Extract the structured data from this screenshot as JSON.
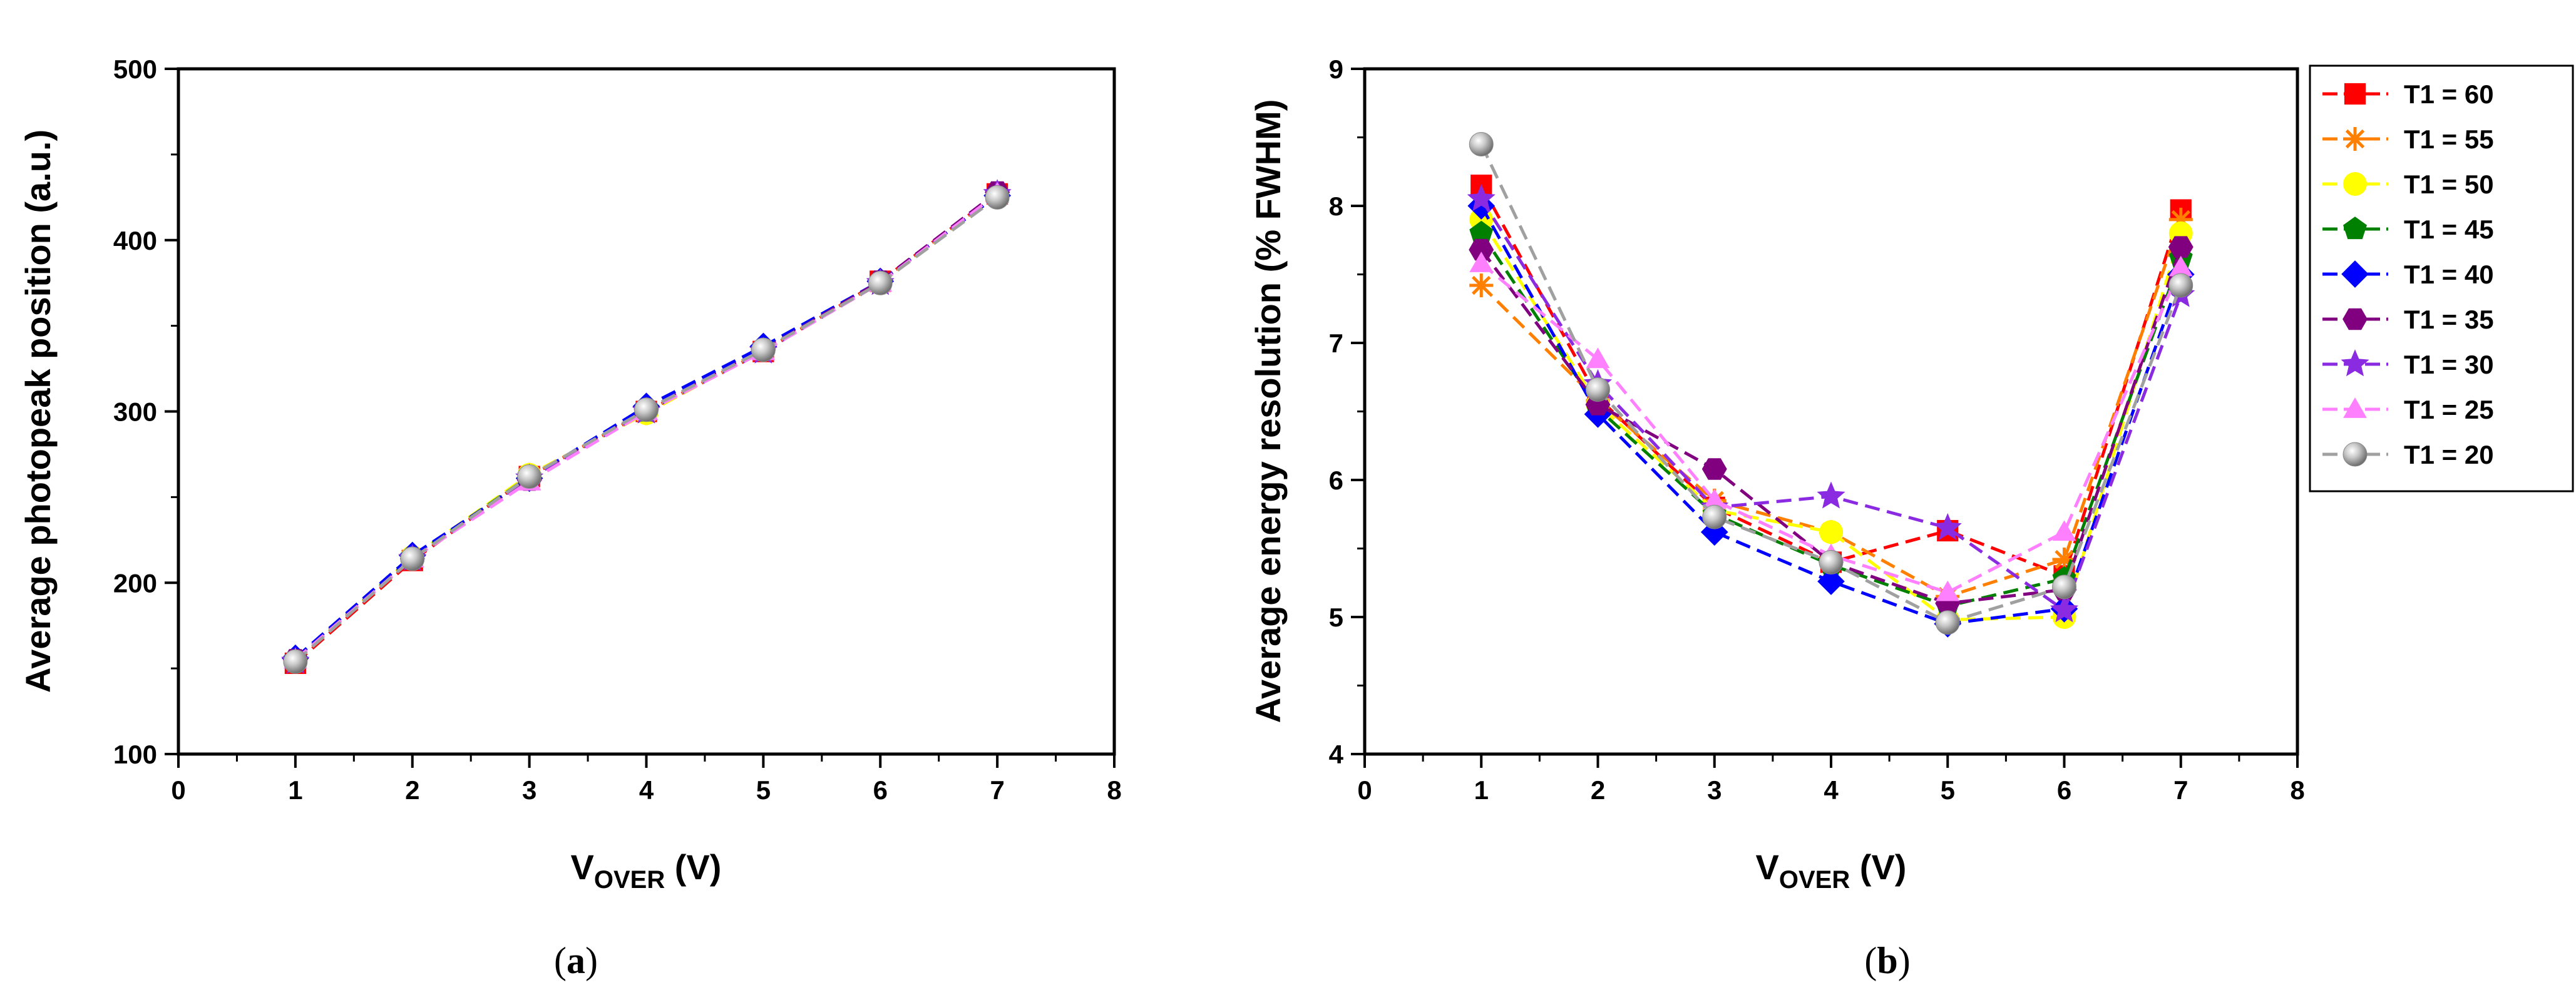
{
  "chart_data": [
    {
      "type": "line",
      "panel": "a",
      "xlabel_main": "V",
      "xlabel_sub": "OVER",
      "xlabel_unit": " (V)",
      "ylabel": "Average photopeak position (a.u.)",
      "xlim": [
        0,
        8
      ],
      "ylim": [
        100,
        500
      ],
      "xticks": [
        0,
        1,
        2,
        3,
        4,
        5,
        6,
        7,
        8
      ],
      "yticks": [
        100,
        200,
        300,
        400,
        500
      ],
      "x": [
        1,
        2,
        3,
        4,
        5,
        6,
        7
      ],
      "series": [
        {
          "name": "T1 = 60",
          "values": [
            153,
            213,
            262,
            300,
            335,
            376,
            427
          ]
        },
        {
          "name": "T1 = 55",
          "values": [
            154,
            214,
            263,
            299,
            336,
            375,
            426
          ]
        },
        {
          "name": "T1 = 50",
          "values": [
            154,
            215,
            263,
            299,
            336,
            375,
            426
          ]
        },
        {
          "name": "T1 = 45",
          "values": [
            155,
            215,
            262,
            300,
            336,
            375,
            427
          ]
        },
        {
          "name": "T1 = 40",
          "values": [
            156,
            216,
            261,
            303,
            338,
            376,
            426
          ]
        },
        {
          "name": "T1 = 35",
          "values": [
            155,
            214,
            260,
            301,
            336,
            376,
            428
          ]
        },
        {
          "name": "T1 = 30",
          "values": [
            154,
            214,
            261,
            300,
            335,
            375,
            427
          ]
        },
        {
          "name": "T1 = 25",
          "values": [
            155,
            214,
            259,
            300,
            335,
            375,
            427
          ]
        },
        {
          "name": "T1 = 20",
          "values": [
            154,
            214,
            262,
            301,
            336,
            375,
            425
          ]
        }
      ],
      "caption_open": "(",
      "caption_letter": "a",
      "caption_close": ")"
    },
    {
      "type": "line",
      "panel": "b",
      "xlabel_main": "V",
      "xlabel_sub": "OVER",
      "xlabel_unit": " (V)",
      "ylabel": "Average energy resolution (% FWHM)",
      "xlim": [
        0,
        8
      ],
      "ylim": [
        4,
        9
      ],
      "xticks": [
        0,
        1,
        2,
        3,
        4,
        5,
        6,
        7,
        8
      ],
      "yticks": [
        4,
        5,
        6,
        7,
        8,
        9
      ],
      "x": [
        1,
        2,
        3,
        4,
        5,
        6,
        7
      ],
      "series": [
        {
          "name": "T1 = 60",
          "values": [
            8.15,
            6.6,
            5.8,
            5.4,
            5.63,
            5.3,
            7.97
          ]
        },
        {
          "name": "T1 = 55",
          "values": [
            7.42,
            6.58,
            5.85,
            5.62,
            5.15,
            5.42,
            7.9
          ]
        },
        {
          "name": "T1 = 50",
          "values": [
            7.9,
            6.55,
            5.78,
            5.62,
            4.98,
            5.0,
            7.8
          ]
        },
        {
          "name": "T1 = 45",
          "values": [
            7.8,
            6.52,
            5.75,
            5.38,
            5.08,
            5.28,
            7.62
          ]
        },
        {
          "name": "T1 = 40",
          "values": [
            8.0,
            6.48,
            5.62,
            5.26,
            4.95,
            5.06,
            7.5
          ]
        },
        {
          "name": "T1 = 35",
          "values": [
            7.68,
            6.55,
            6.08,
            5.4,
            5.1,
            5.2,
            7.7
          ]
        },
        {
          "name": "T1 = 30",
          "values": [
            8.05,
            6.7,
            5.8,
            5.88,
            5.65,
            5.05,
            7.35
          ]
        },
        {
          "name": "T1 = 25",
          "values": [
            7.58,
            6.88,
            5.85,
            5.45,
            5.18,
            5.62,
            7.55
          ]
        },
        {
          "name": "T1 = 20",
          "values": [
            8.45,
            6.66,
            5.73,
            5.4,
            4.96,
            5.22,
            7.42
          ]
        }
      ],
      "caption_open": "(",
      "caption_letter": "b",
      "caption_close": ")"
    }
  ],
  "legend": [
    {
      "label": "T1 = 60",
      "color": "#ff0000",
      "marker": "square"
    },
    {
      "label": "T1 = 55",
      "color": "#ff7f00",
      "marker": "asterisk"
    },
    {
      "label": "T1 = 50",
      "color": "#ffff00",
      "marker": "circle"
    },
    {
      "label": "T1 = 45",
      "color": "#008000",
      "marker": "pentagon"
    },
    {
      "label": "T1 = 40",
      "color": "#0000ff",
      "marker": "diamond"
    },
    {
      "label": "T1 = 35",
      "color": "#800080",
      "marker": "hexagon"
    },
    {
      "label": "T1 = 30",
      "color": "#8a2be2",
      "marker": "star"
    },
    {
      "label": "T1 = 25",
      "color": "#ff80ff",
      "marker": "triangle"
    },
    {
      "label": "T1 = 20",
      "color": "#a0a0a0",
      "marker": "sphere"
    }
  ]
}
